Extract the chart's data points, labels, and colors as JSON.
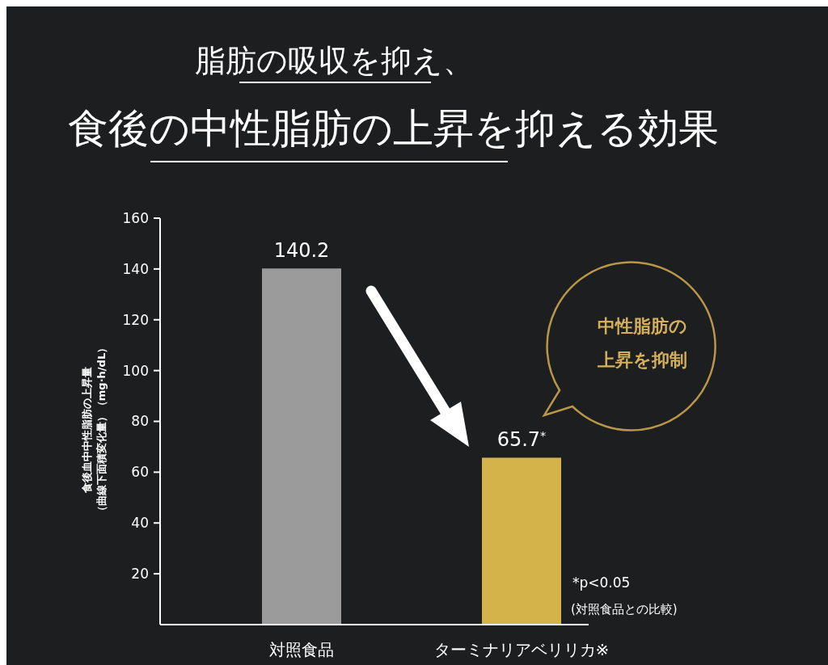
{
  "chart_data": {
    "type": "bar",
    "title": "脂肪の吸収を抑え、",
    "subtitle": "食後の中性脂肪の上昇を抑える効果",
    "ylabel": "食後血中中性脂肪の上昇量（曲線下面積変化量）（mg·h/dL）",
    "categories": [
      "対照食品",
      "ターミナリアベリリカ※"
    ],
    "values": [
      140.2,
      65.7
    ],
    "colors": [
      "#9b9b9b",
      "#d4b44a"
    ],
    "value_labels": [
      "140.2",
      "65.7$^{*}$"
    ],
    "ylim": [
      0,
      160
    ],
    "yticks": [
      20,
      40,
      60,
      80,
      100,
      120,
      140,
      160
    ],
    "annotations": [
      "*p<0.05",
      "(対照食品との比較)",
      "中性脂肪の上昇を抑制"
    ]
  }
}
